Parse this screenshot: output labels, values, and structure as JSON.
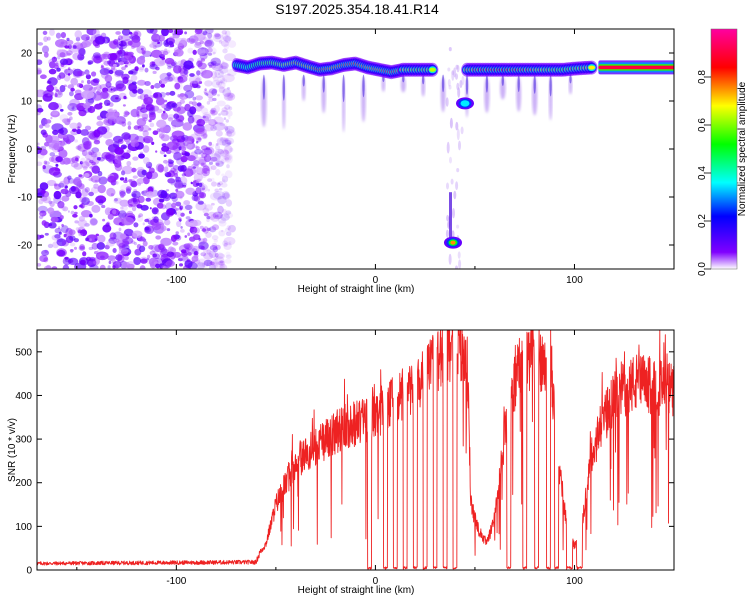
{
  "figure": {
    "title": "S197.2025.354.18.41.R14"
  },
  "chart_data": [
    {
      "type": "heatmap",
      "title": "S197.2025.354.18.41.R14",
      "xlabel": "Height of straight line (km)",
      "ylabel": "Frequency (Hz)",
      "xlim": [
        -170,
        150
      ],
      "ylim": [
        -25,
        25
      ],
      "xticks": [
        -100,
        0,
        100
      ],
      "yticks": [
        -20,
        -10,
        0,
        10,
        20
      ],
      "colorbar": {
        "label": "Normalized spectral amplitude",
        "ticks": [
          0.0,
          0.2,
          0.4,
          0.6,
          0.8
        ],
        "range": [
          0,
          1
        ],
        "colors": [
          "#ffffff",
          "#8000ff",
          "#0000ff",
          "#00ffff",
          "#00ff00",
          "#ffff00",
          "#ff0000",
          "#ff00a0"
        ]
      },
      "noise_region_x": [
        -170,
        -72
      ],
      "main_tone": [
        {
          "x": -70,
          "f": 17.5,
          "a": 0.45
        },
        {
          "x": -64,
          "f": 17.0,
          "a": 0.4
        },
        {
          "x": -58,
          "f": 17.8,
          "a": 0.55
        },
        {
          "x": -52,
          "f": 18.0,
          "a": 0.6
        },
        {
          "x": -46,
          "f": 17.5,
          "a": 0.65
        },
        {
          "x": -40,
          "f": 18.0,
          "a": 0.75
        },
        {
          "x": -34,
          "f": 17.2,
          "a": 0.7
        },
        {
          "x": -28,
          "f": 16.5,
          "a": 0.8
        },
        {
          "x": -22,
          "f": 16.8,
          "a": 0.72
        },
        {
          "x": -16,
          "f": 17.5,
          "a": 0.75
        },
        {
          "x": -10,
          "f": 17.8,
          "a": 0.78
        },
        {
          "x": -4,
          "f": 17.0,
          "a": 0.7
        },
        {
          "x": 2,
          "f": 16.5,
          "a": 0.72
        },
        {
          "x": 8,
          "f": 16.0,
          "a": 0.75
        },
        {
          "x": 14,
          "f": 16.5,
          "a": 0.7
        },
        {
          "x": 22,
          "f": 16.5,
          "a": 0.6
        },
        {
          "x": 30,
          "f": 16.5,
          "a": 0.65
        },
        {
          "x": 46,
          "f": 16.5,
          "a": 0.7
        },
        {
          "x": 54,
          "f": 16.5,
          "a": 0.78
        },
        {
          "x": 62,
          "f": 16.5,
          "a": 0.8
        },
        {
          "x": 70,
          "f": 16.5,
          "a": 0.78
        },
        {
          "x": 78,
          "f": 16.5,
          "a": 0.75
        },
        {
          "x": 86,
          "f": 16.5,
          "a": 0.65
        },
        {
          "x": 94,
          "f": 16.5,
          "a": 0.6
        },
        {
          "x": 102,
          "f": 16.8,
          "a": 0.62
        },
        {
          "x": 110,
          "f": 17.0,
          "a": 0.7
        }
      ],
      "steady_tone": {
        "x_start": 112,
        "x_end": 150,
        "f": 17.0,
        "a": 0.9
      },
      "tails_x": [
        -56,
        -46,
        -36,
        -26,
        -16,
        -6,
        4,
        14,
        24,
        34,
        46,
        56,
        64,
        72,
        80,
        88,
        98
      ],
      "blobs": [
        {
          "x": 39,
          "f": -19.5,
          "a": 0.75
        },
        {
          "x": 45,
          "f": 9.5,
          "a": 0.35
        }
      ],
      "gap_x": [
        36,
        44
      ]
    },
    {
      "type": "line",
      "xlabel": "Height of straight line (km)",
      "ylabel": "SNR (10 * v/v)",
      "xlim": [
        -170,
        150
      ],
      "ylim": [
        0,
        550
      ],
      "xticks": [
        -100,
        0,
        100
      ],
      "yticks": [
        0,
        100,
        200,
        300,
        400,
        500
      ],
      "color": "#ee2222",
      "envelope": [
        [
          -170,
          15
        ],
        [
          -60,
          18
        ],
        [
          -58,
          40
        ],
        [
          -55,
          60
        ],
        [
          -50,
          150
        ],
        [
          -45,
          200
        ],
        [
          -40,
          250
        ],
        [
          -30,
          280
        ],
        [
          -22,
          310
        ],
        [
          -15,
          330
        ],
        [
          -8,
          340
        ],
        [
          0,
          355
        ],
        [
          10,
          385
        ],
        [
          20,
          420
        ],
        [
          30,
          470
        ],
        [
          36,
          510
        ],
        [
          42,
          520
        ],
        [
          46,
          500
        ],
        [
          48,
          150
        ],
        [
          52,
          90
        ],
        [
          56,
          60
        ],
        [
          60,
          120
        ],
        [
          66,
          350
        ],
        [
          72,
          460
        ],
        [
          80,
          490
        ],
        [
          88,
          480
        ],
        [
          92,
          250
        ],
        [
          96,
          110
        ],
        [
          100,
          55
        ],
        [
          104,
          110
        ],
        [
          108,
          250
        ],
        [
          114,
          340
        ],
        [
          122,
          410
        ],
        [
          132,
          430
        ],
        [
          140,
          420
        ],
        [
          150,
          410
        ]
      ],
      "dropouts": [
        {
          "from": -4,
          "to": -2
        },
        {
          "from": 4,
          "to": 6
        },
        {
          "from": 9,
          "to": 11
        },
        {
          "from": 14,
          "to": 16
        },
        {
          "from": 19,
          "to": 21
        },
        {
          "from": 24,
          "to": 26
        },
        {
          "from": 29,
          "to": 31
        },
        {
          "from": 34,
          "to": 36
        },
        {
          "from": 39,
          "to": 41
        },
        {
          "from": 66,
          "to": 68
        },
        {
          "from": 74,
          "to": 76
        },
        {
          "from": 80,
          "to": 82
        },
        {
          "from": 86,
          "to": 88
        },
        {
          "from": 90,
          "to": 92
        },
        {
          "from": 96,
          "to": 99
        },
        {
          "from": 101,
          "to": 104
        }
      ]
    }
  ]
}
